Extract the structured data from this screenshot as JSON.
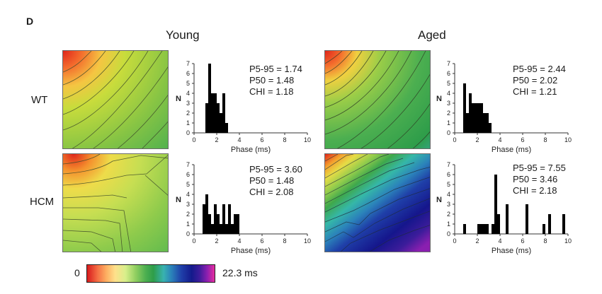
{
  "panel_letter": "D",
  "col_titles": {
    "young": "Young",
    "aged": "Aged"
  },
  "row_labels": {
    "wt": "WT",
    "hcm": "HCM"
  },
  "colorbar": {
    "min_label": "0",
    "max_label": "22.3 ms"
  },
  "axis": {
    "xlabel": "Phase (ms)",
    "ylabel": "N",
    "xticks": [
      "0",
      "2",
      "4",
      "6",
      "8",
      "10"
    ],
    "yticks": [
      "0",
      "1",
      "2",
      "3",
      "4",
      "5",
      "6",
      "7"
    ]
  },
  "stats": {
    "young_wt": [
      "P5-95 = 1.74",
      "P50 = 1.48",
      "CHI = 1.18"
    ],
    "aged_wt": [
      "P5-95 = 2.44",
      "P50 = 2.02",
      "CHI = 1.21"
    ],
    "young_hcm": [
      "P5-95 = 3.60",
      "P50 = 1.48",
      "CHI = 2.08"
    ],
    "aged_hcm": [
      "P5-95 = 7.55",
      "P50 = 3.46",
      "CHI = 2.18"
    ]
  },
  "colors": {
    "bars": "#000000",
    "axis": "#333333"
  },
  "chart_data": [
    {
      "type": "bar",
      "id": "young_wt",
      "xlabel": "Phase (ms)",
      "ylabel": "N",
      "xlim": [
        0,
        10
      ],
      "ylim": [
        0,
        7
      ],
      "bin_width": 0.25,
      "bins": [
        {
          "x": 1.0,
          "n": 3
        },
        {
          "x": 1.25,
          "n": 7
        },
        {
          "x": 1.5,
          "n": 4
        },
        {
          "x": 1.75,
          "n": 4
        },
        {
          "x": 2.0,
          "n": 3
        },
        {
          "x": 2.25,
          "n": 2
        },
        {
          "x": 2.5,
          "n": 4
        },
        {
          "x": 2.75,
          "n": 1
        }
      ]
    },
    {
      "type": "bar",
      "id": "aged_wt",
      "xlabel": "Phase (ms)",
      "ylabel": "N",
      "xlim": [
        0,
        10
      ],
      "ylim": [
        0,
        7
      ],
      "bin_width": 0.25,
      "bins": [
        {
          "x": 0.75,
          "n": 5
        },
        {
          "x": 1.0,
          "n": 2
        },
        {
          "x": 1.25,
          "n": 4
        },
        {
          "x": 1.5,
          "n": 3
        },
        {
          "x": 1.75,
          "n": 3
        },
        {
          "x": 2.0,
          "n": 3
        },
        {
          "x": 2.25,
          "n": 3
        },
        {
          "x": 2.5,
          "n": 2
        },
        {
          "x": 2.75,
          "n": 2
        },
        {
          "x": 3.0,
          "n": 1
        }
      ]
    },
    {
      "type": "bar",
      "id": "young_hcm",
      "xlabel": "Phase (ms)",
      "ylabel": "N",
      "xlim": [
        0,
        10
      ],
      "ylim": [
        0,
        7
      ],
      "bin_width": 0.25,
      "bins": [
        {
          "x": 0.75,
          "n": 3
        },
        {
          "x": 1.0,
          "n": 4
        },
        {
          "x": 1.25,
          "n": 2
        },
        {
          "x": 1.5,
          "n": 1
        },
        {
          "x": 1.75,
          "n": 3
        },
        {
          "x": 2.0,
          "n": 2
        },
        {
          "x": 2.25,
          "n": 1
        },
        {
          "x": 2.5,
          "n": 3
        },
        {
          "x": 2.75,
          "n": 1
        },
        {
          "x": 3.0,
          "n": 3
        },
        {
          "x": 3.25,
          "n": 1
        },
        {
          "x": 3.5,
          "n": 2
        },
        {
          "x": 3.75,
          "n": 2
        }
      ]
    },
    {
      "type": "bar",
      "id": "aged_hcm",
      "xlabel": "Phase (ms)",
      "ylabel": "N",
      "xlim": [
        0,
        10
      ],
      "ylim": [
        0,
        7
      ],
      "bin_width": 0.25,
      "bins": [
        {
          "x": 0.75,
          "n": 1
        },
        {
          "x": 2.0,
          "n": 1
        },
        {
          "x": 2.25,
          "n": 1
        },
        {
          "x": 2.5,
          "n": 1
        },
        {
          "x": 2.75,
          "n": 1
        },
        {
          "x": 3.25,
          "n": 1
        },
        {
          "x": 3.5,
          "n": 6
        },
        {
          "x": 3.75,
          "n": 2
        },
        {
          "x": 4.5,
          "n": 3
        },
        {
          "x": 6.25,
          "n": 3
        },
        {
          "x": 7.75,
          "n": 1
        },
        {
          "x": 8.25,
          "n": 2
        },
        {
          "x": 9.5,
          "n": 2
        }
      ]
    }
  ]
}
